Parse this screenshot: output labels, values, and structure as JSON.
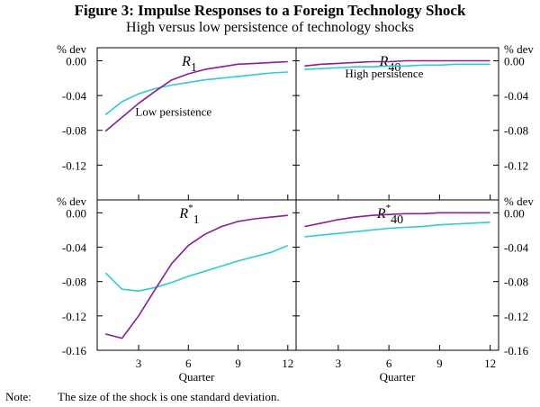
{
  "title": "Figure 3: Impulse Responses to a Foreign Technology Shock",
  "subtitle": "High versus low persistence of technology shocks",
  "note": {
    "label": "Note:",
    "text": "The size of the shock is one standard deviation."
  },
  "colors": {
    "high_persistence": "#2ccfcf",
    "low_persistence": "#8b1c9a"
  },
  "chart_data": {
    "type": "line",
    "yunit": "% dev",
    "xlabel": "Quarter",
    "xticks": [
      3,
      6,
      9,
      12
    ],
    "xlim": [
      0.5,
      12.5
    ],
    "panel_rows": [
      {
        "ylim": [
          -0.16,
          0.015
        ],
        "yticks": [
          "0.00",
          "-0.04",
          "-0.08",
          "-0.12"
        ],
        "ytick_values": [
          0,
          -0.04,
          -0.08,
          -0.12
        ]
      },
      {
        "ylim": [
          -0.16,
          0.015
        ],
        "yticks": [
          "0.00",
          "-0.04",
          "-0.08",
          "-0.12",
          "-0.16"
        ],
        "ytick_values": [
          0,
          -0.04,
          -0.08,
          -0.12,
          -0.16
        ]
      }
    ],
    "panels": [
      {
        "var": "R",
        "sup": "",
        "sub": "1",
        "row": 0,
        "col": 0,
        "annotation": {
          "text": "Low persistence",
          "series": "low"
        },
        "series": [
          {
            "id": "high",
            "x": [
              1,
              2,
              3,
              4,
              5,
              6,
              7,
              8,
              9,
              10,
              11,
              12
            ],
            "y": [
              -0.062,
              -0.047,
              -0.038,
              -0.032,
              -0.028,
              -0.025,
              -0.022,
              -0.02,
              -0.018,
              -0.016,
              -0.014,
              -0.013
            ]
          },
          {
            "id": "low",
            "x": [
              1,
              2,
              3,
              4,
              5,
              6,
              7,
              8,
              9,
              10,
              11,
              12
            ],
            "y": [
              -0.081,
              -0.065,
              -0.049,
              -0.035,
              -0.022,
              -0.015,
              -0.01,
              -0.007,
              -0.004,
              -0.003,
              -0.002,
              -0.001
            ]
          }
        ]
      },
      {
        "var": "R",
        "sup": "",
        "sub": "40",
        "row": 0,
        "col": 1,
        "annotation": {
          "text": "High persistence",
          "series": "high"
        },
        "series": [
          {
            "id": "high",
            "x": [
              1,
              2,
              3,
              4,
              5,
              6,
              7,
              8,
              9,
              10,
              11,
              12
            ],
            "y": [
              -0.01,
              -0.009,
              -0.008,
              -0.007,
              -0.007,
              -0.006,
              -0.006,
              -0.005,
              -0.005,
              -0.004,
              -0.004,
              -0.004
            ]
          },
          {
            "id": "low",
            "x": [
              1,
              2,
              3,
              4,
              5,
              6,
              7,
              8,
              9,
              10,
              11,
              12
            ],
            "y": [
              -0.006,
              -0.004,
              -0.003,
              -0.002,
              -0.001,
              -0.001,
              0.0,
              0.0,
              0.0,
              0.0,
              0.0,
              0.0
            ]
          }
        ]
      },
      {
        "var": "R",
        "sup": "*",
        "sub": "1",
        "row": 1,
        "col": 0,
        "series": [
          {
            "id": "high",
            "x": [
              1,
              2,
              3,
              4,
              5,
              6,
              7,
              8,
              9,
              10,
              11,
              12
            ],
            "y": [
              -0.07,
              -0.089,
              -0.091,
              -0.087,
              -0.081,
              -0.074,
              -0.068,
              -0.062,
              -0.056,
              -0.051,
              -0.046,
              -0.038
            ]
          },
          {
            "id": "low",
            "x": [
              1,
              2,
              3,
              4,
              5,
              6,
              7,
              8,
              9,
              10,
              11,
              12
            ],
            "y": [
              -0.141,
              -0.146,
              -0.12,
              -0.089,
              -0.059,
              -0.038,
              -0.025,
              -0.016,
              -0.01,
              -0.007,
              -0.005,
              -0.003
            ]
          }
        ]
      },
      {
        "var": "R",
        "sup": "*",
        "sub": "40",
        "row": 1,
        "col": 1,
        "series": [
          {
            "id": "high",
            "x": [
              1,
              2,
              3,
              4,
              5,
              6,
              7,
              8,
              9,
              10,
              11,
              12
            ],
            "y": [
              -0.028,
              -0.026,
              -0.024,
              -0.022,
              -0.02,
              -0.018,
              -0.017,
              -0.016,
              -0.014,
              -0.013,
              -0.012,
              -0.011
            ]
          },
          {
            "id": "low",
            "x": [
              1,
              2,
              3,
              4,
              5,
              6,
              7,
              8,
              9,
              10,
              11,
              12
            ],
            "y": [
              -0.016,
              -0.012,
              -0.008,
              -0.005,
              -0.003,
              -0.002,
              -0.001,
              -0.001,
              0.0,
              0.0,
              0.0,
              0.0
            ]
          }
        ]
      }
    ]
  }
}
